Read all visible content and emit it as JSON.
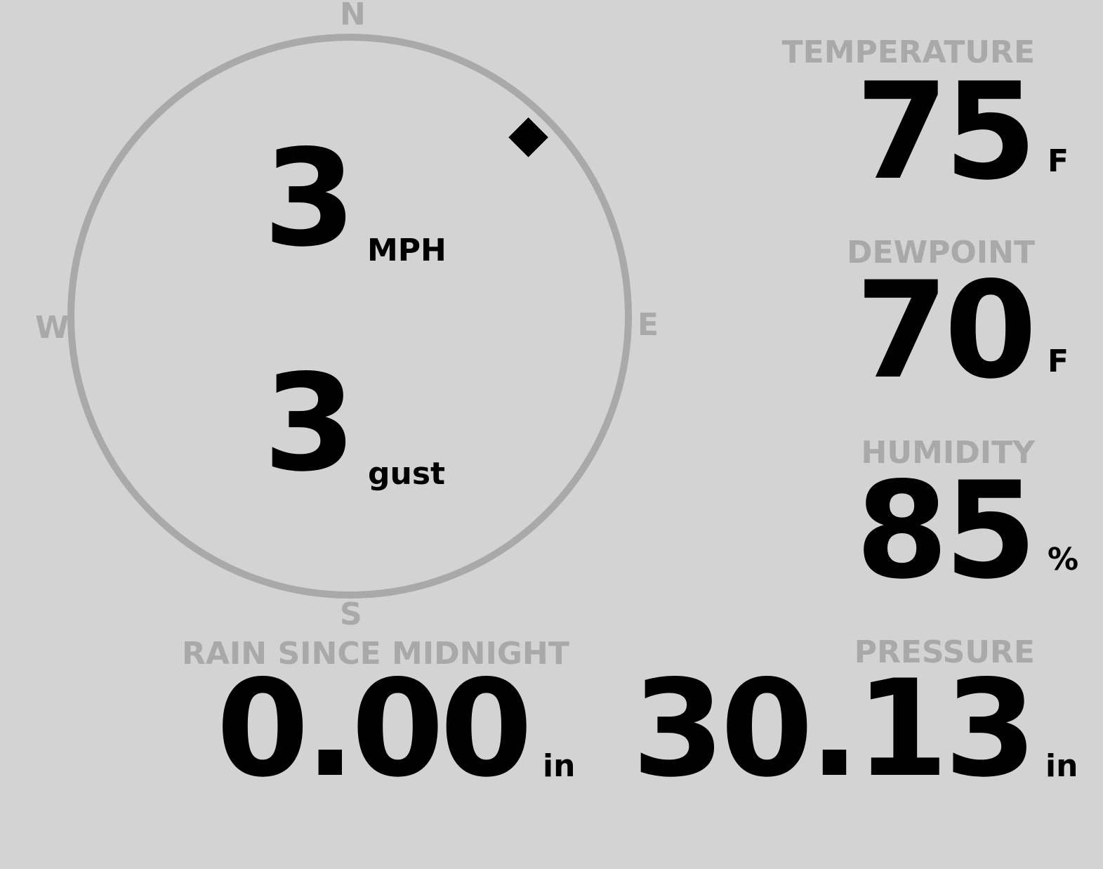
{
  "colors": {
    "background": "#d3d3d3",
    "label": "#a9a9a9",
    "value": "#000000"
  },
  "wind": {
    "cardinals": {
      "n": "N",
      "e": "E",
      "s": "S",
      "w": "W"
    },
    "direction_degrees": 45,
    "direction_marker_icon": "diamond-icon",
    "speed": "3",
    "speed_unit": "MPH",
    "gust": "3",
    "gust_unit": "gust"
  },
  "temperature": {
    "label": "TEMPERATURE",
    "value": "75",
    "unit": "F"
  },
  "dewpoint": {
    "label": "DEWPOINT",
    "value": "70",
    "unit": "F"
  },
  "humidity": {
    "label": "HUMIDITY",
    "value": "85",
    "unit": "%"
  },
  "rain": {
    "label": "RAIN SINCE MIDNIGHT",
    "value": "0.00",
    "unit": "in"
  },
  "pressure": {
    "label": "PRESSURE",
    "value": "30.13",
    "unit": "in"
  }
}
